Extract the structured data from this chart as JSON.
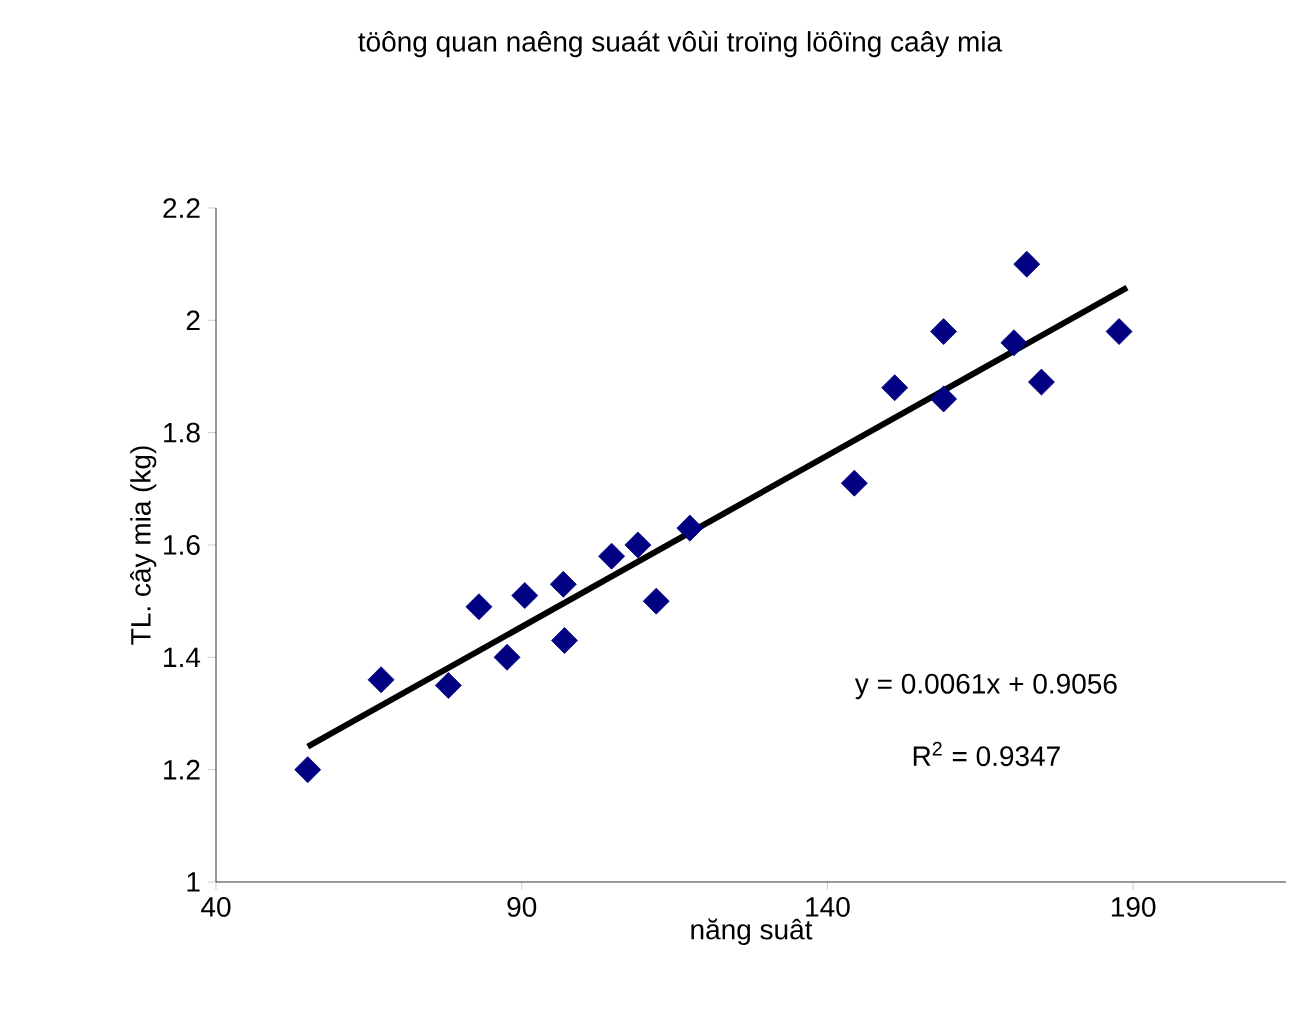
{
  "chart_data": {
    "type": "scatter",
    "title": "töông quan naêng suaát vôùi troïng löôïng caây mia",
    "xlabel": "năng suât",
    "ylabel": "TL. cây mia (kg)",
    "annotations": [
      "y = 0.0061x + 0.9056",
      "R$^{2}$ = 0.9347"
    ],
    "xlim": [
      40,
      215
    ],
    "xticks": [
      40,
      90,
      140,
      190
    ],
    "ylim": [
      1,
      2.2
    ],
    "yticks": [
      1,
      1.2,
      1.4,
      1.6,
      1.8,
      2,
      2.2
    ],
    "marker": "diamond",
    "grid": false,
    "series": [
      {
        "color": "#000080",
        "x": [
          55,
          67,
          78,
          83,
          87.6,
          90.5,
          96.8,
          97,
          104.7,
          109,
          112,
          117.5,
          144.4,
          151,
          159,
          159,
          170.5,
          172.6,
          175,
          187.7
        ],
        "values": [
          1.2,
          1.36,
          1.35,
          1.49,
          1.4,
          1.51,
          1.53,
          1.43,
          1.58,
          1.6,
          1.5,
          1.63,
          1.71,
          1.88,
          1.98,
          1.86,
          1.96,
          2.1,
          1.89,
          1.98
        ]
      },
      {
        "type": "line",
        "color": "#000000",
        "marker": "none",
        "x": [
          55,
          189
        ],
        "values": [
          1.241,
          2.058
        ]
      }
    ]
  }
}
